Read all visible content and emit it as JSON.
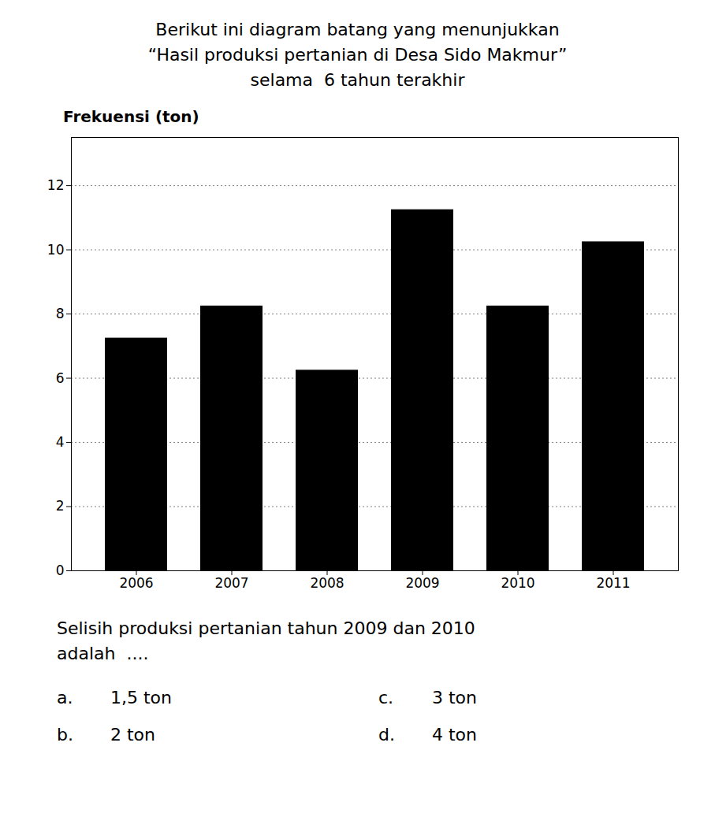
{
  "chart_data": {
    "type": "bar",
    "title": "Berikut ini diagram batang yang menunjukkan\n“Hasil produksi pertanian di Desa Sido Makmur”\nselama  6 tahun terakhir",
    "ylabel": "Frekuensi (ton)",
    "categories": [
      "2006",
      "2007",
      "2008",
      "2009",
      "2010",
      "2011"
    ],
    "values": [
      7.25,
      8.25,
      6.25,
      11.25,
      8.25,
      10.25
    ],
    "ylim": [
      0,
      13.5
    ],
    "yticks": [
      0,
      2,
      4,
      6,
      8,
      10,
      12
    ],
    "grid": true,
    "annotations": [
      "Selisih produksi pertanian tahun 2009 dan 2010\nadalah  ....",
      "a.",
      "1,5 ton",
      "c.",
      "3 ton",
      "b.",
      "2 ton",
      "d.",
      "4 ton"
    ]
  }
}
